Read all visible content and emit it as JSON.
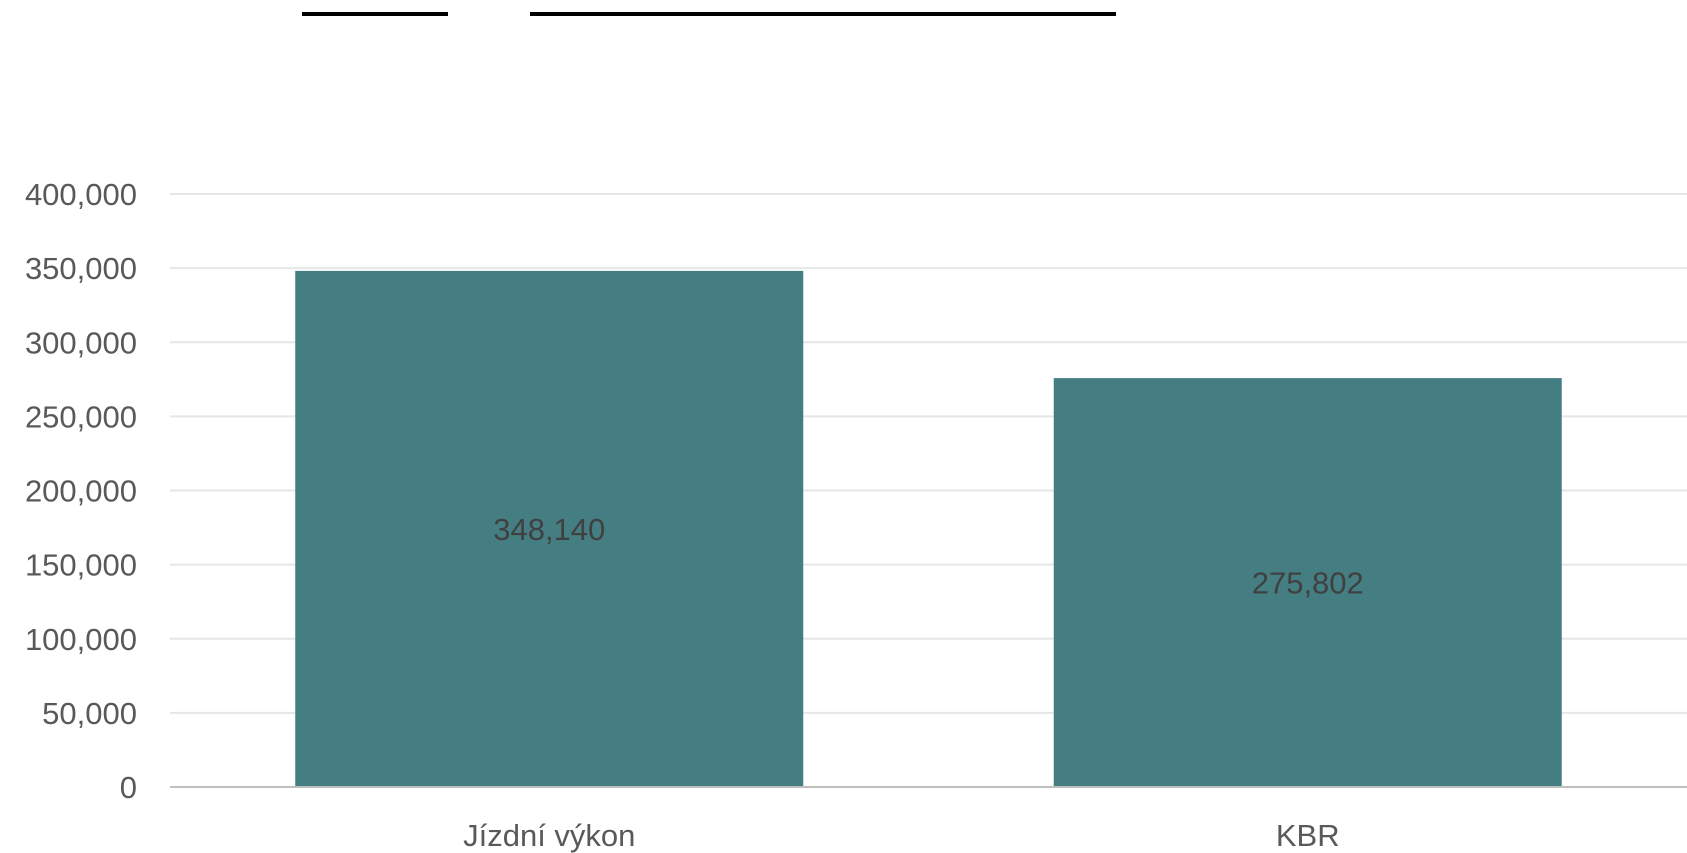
{
  "chart_data": {
    "type": "bar",
    "categories": [
      "Jízdní výkon",
      "KBR"
    ],
    "values": [
      348140,
      275802
    ],
    "value_labels": [
      "348,140",
      "275,802"
    ],
    "title": "",
    "xlabel": "",
    "ylabel": "",
    "ylim": [
      0,
      400000
    ],
    "yticks": [
      0,
      50000,
      100000,
      150000,
      200000,
      250000,
      300000,
      350000,
      400000
    ],
    "ytick_labels": [
      "0",
      "50,000",
      "100,000",
      "150,000",
      "200,000",
      "250,000",
      "300,000",
      "350,000",
      "400,000"
    ],
    "grid": true,
    "legend": "none"
  },
  "colors": {
    "bar": "#447e82",
    "grid": "#e6e6e6",
    "axis": "#bfbfbf",
    "redacted_marks": "#000000"
  }
}
